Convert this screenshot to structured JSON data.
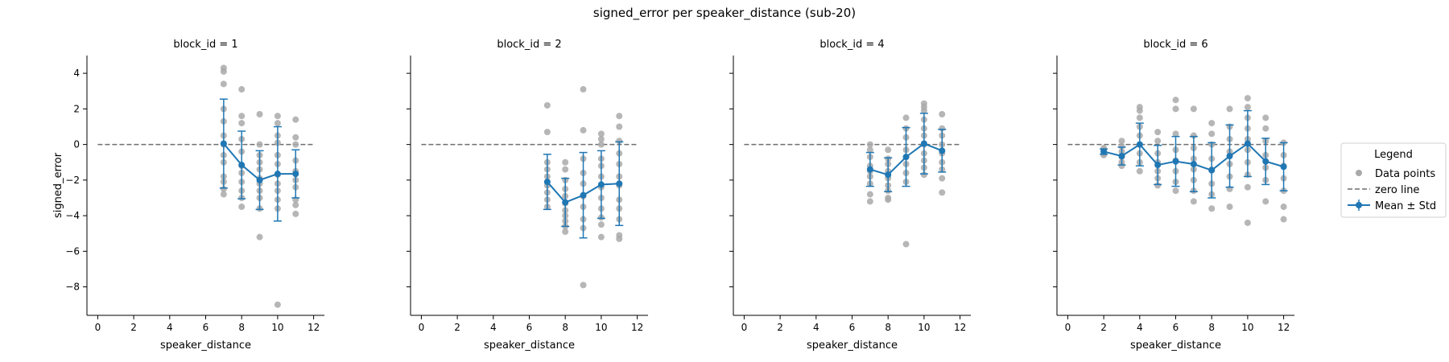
{
  "chart_data": {
    "title": "signed_error per speaker_distance (sub-20)",
    "type": "scatter",
    "xlabel": "speaker_distance",
    "ylabel": "signed_error",
    "xlim": [
      -0.6,
      12.6
    ],
    "ylim": [
      -9.6,
      5.0
    ],
    "xticks": [
      0,
      2,
      4,
      6,
      8,
      10,
      12
    ],
    "yticks": [
      4,
      2,
      0,
      -2,
      -4,
      -6,
      -8
    ],
    "zero_line": 0,
    "colors": {
      "points": "#a9a9a9",
      "mean": "#1f77b4",
      "zero": "#6e6e6e"
    },
    "legend": {
      "title": "Legend",
      "position": "right",
      "entries": [
        "Data points",
        "zero line",
        "Mean ± Std"
      ]
    },
    "panels": [
      {
        "title": "block_id = 1",
        "mean": [
          {
            "x": 7,
            "y": 0.05,
            "std": 2.5
          },
          {
            "x": 8,
            "y": -1.15,
            "std": 1.9
          },
          {
            "x": 9,
            "y": -2.0,
            "std": 1.65
          },
          {
            "x": 10,
            "y": -1.65,
            "std": 2.65
          },
          {
            "x": 11,
            "y": -1.65,
            "std": 1.35
          }
        ],
        "points": [
          {
            "x": 7,
            "y": [
              4.3,
              4.1,
              3.4,
              2.0,
              1.3,
              0.5,
              0.0,
              -0.6,
              -1.0,
              -1.8,
              -2.1,
              -2.5,
              -2.8
            ]
          },
          {
            "x": 8,
            "y": [
              3.1,
              1.6,
              1.2,
              0.3,
              -0.4,
              -1.2,
              -1.6,
              -2.1,
              -2.6,
              -3.0,
              -3.5
            ]
          },
          {
            "x": 9,
            "y": [
              1.7,
              0.0,
              -0.6,
              -1.0,
              -1.4,
              -1.9,
              -2.2,
              -2.6,
              -3.0,
              -3.6,
              -5.2
            ]
          },
          {
            "x": 10,
            "y": [
              1.6,
              1.2,
              0.5,
              0.1,
              -0.6,
              -1.1,
              -1.7,
              -2.2,
              -2.6,
              -3.1,
              -3.6,
              -9.0
            ]
          },
          {
            "x": 11,
            "y": [
              1.4,
              0.4,
              0.0,
              -0.9,
              -1.5,
              -2.0,
              -2.4,
              -3.1,
              -3.4,
              -3.9
            ]
          }
        ]
      },
      {
        "title": "block_id = 2",
        "mean": [
          {
            "x": 7,
            "y": -2.1,
            "std": 1.55
          },
          {
            "x": 8,
            "y": -3.25,
            "std": 1.35
          },
          {
            "x": 9,
            "y": -2.85,
            "std": 2.4
          },
          {
            "x": 10,
            "y": -2.25,
            "std": 1.9
          },
          {
            "x": 11,
            "y": -2.2,
            "std": 2.35
          }
        ],
        "points": [
          {
            "x": 7,
            "y": [
              2.2,
              0.7,
              -1.0,
              -1.4,
              -1.8,
              -2.3,
              -2.7,
              -3.1,
              -3.5
            ]
          },
          {
            "x": 8,
            "y": [
              -1.0,
              -1.4,
              -2.0,
              -2.5,
              -2.9,
              -3.3,
              -3.7,
              -4.0,
              -4.3,
              -4.6,
              -4.9
            ]
          },
          {
            "x": 9,
            "y": [
              3.1,
              0.8,
              -0.8,
              -1.6,
              -2.2,
              -2.9,
              -3.5,
              -4.2,
              -4.7,
              -7.9
            ]
          },
          {
            "x": 10,
            "y": [
              0.6,
              0.3,
              0.0,
              -0.8,
              -1.2,
              -1.8,
              -2.4,
              -3.0,
              -3.6,
              -4.1,
              -4.5,
              -5.2
            ]
          },
          {
            "x": 11,
            "y": [
              1.6,
              1.0,
              0.2,
              -0.5,
              -1.1,
              -1.8,
              -2.3,
              -3.1,
              -3.6,
              -4.2,
              -5.1,
              -5.3
            ]
          }
        ]
      },
      {
        "title": "block_id = 4",
        "mean": [
          {
            "x": 7,
            "y": -1.4,
            "std": 0.95
          },
          {
            "x": 8,
            "y": -1.7,
            "std": 0.95
          },
          {
            "x": 9,
            "y": -0.7,
            "std": 1.65
          },
          {
            "x": 10,
            "y": 0.05,
            "std": 1.7
          },
          {
            "x": 11,
            "y": -0.35,
            "std": 1.2
          }
        ],
        "points": [
          {
            "x": 7,
            "y": [
              0.0,
              -0.3,
              -0.7,
              -1.2,
              -1.5,
              -1.8,
              -2.2,
              -2.8,
              -3.2
            ]
          },
          {
            "x": 8,
            "y": [
              -0.3,
              -0.8,
              -1.1,
              -1.5,
              -1.9,
              -2.3,
              -2.6,
              -3.0,
              -3.1
            ]
          },
          {
            "x": 9,
            "y": [
              1.5,
              0.9,
              0.4,
              -0.3,
              -0.7,
              -1.1,
              -1.6,
              -2.1,
              -5.6
            ]
          },
          {
            "x": 10,
            "y": [
              2.3,
              2.1,
              1.9,
              1.4,
              0.9,
              0.5,
              0.0,
              -0.5,
              -0.9,
              -1.3,
              -1.7
            ]
          },
          {
            "x": 11,
            "y": [
              1.7,
              0.9,
              0.5,
              0.0,
              -0.5,
              -1.0,
              -1.4,
              -1.9,
              -2.7
            ]
          }
        ]
      },
      {
        "title": "block_id = 6",
        "mean": [
          {
            "x": 2,
            "y": -0.4,
            "std": 0.15
          },
          {
            "x": 3,
            "y": -0.65,
            "std": 0.5
          },
          {
            "x": 4,
            "y": 0.0,
            "std": 1.2
          },
          {
            "x": 5,
            "y": -1.15,
            "std": 1.1
          },
          {
            "x": 6,
            "y": -0.95,
            "std": 1.4
          },
          {
            "x": 7,
            "y": -1.1,
            "std": 1.55
          },
          {
            "x": 8,
            "y": -1.45,
            "std": 1.55
          },
          {
            "x": 9,
            "y": -0.65,
            "std": 1.75
          },
          {
            "x": 10,
            "y": 0.05,
            "std": 1.85
          },
          {
            "x": 11,
            "y": -0.95,
            "std": 1.3
          },
          {
            "x": 12,
            "y": -1.25,
            "std": 1.35
          }
        ],
        "points": [
          {
            "x": 2,
            "y": [
              -0.2,
              -0.3,
              -0.4,
              -0.5,
              -0.6
            ]
          },
          {
            "x": 3,
            "y": [
              0.2,
              -0.1,
              -0.4,
              -0.7,
              -1.0,
              -1.2
            ]
          },
          {
            "x": 4,
            "y": [
              2.1,
              1.9,
              1.5,
              1.0,
              0.5,
              0.0,
              -0.5,
              -1.0,
              -1.5
            ]
          },
          {
            "x": 5,
            "y": [
              0.7,
              0.2,
              -0.5,
              -1.0,
              -1.5,
              -1.9,
              -2.3
            ]
          },
          {
            "x": 6,
            "y": [
              2.5,
              2.0,
              0.6,
              -0.3,
              -0.9,
              -1.5,
              -2.1,
              -2.6
            ]
          },
          {
            "x": 7,
            "y": [
              2.0,
              0.5,
              -0.2,
              -0.8,
              -1.4,
              -2.0,
              -2.6,
              -3.2
            ]
          },
          {
            "x": 8,
            "y": [
              1.2,
              0.6,
              0.0,
              -0.8,
              -1.4,
              -2.2,
              -2.8,
              -3.6
            ]
          },
          {
            "x": 9,
            "y": [
              2.0,
              1.0,
              0.3,
              -0.4,
              -1.1,
              -1.8,
              -2.5,
              -3.5
            ]
          },
          {
            "x": 10,
            "y": [
              2.6,
              2.1,
              1.5,
              0.9,
              0.3,
              -0.3,
              -1.0,
              -1.7,
              -2.4,
              -4.4
            ]
          },
          {
            "x": 11,
            "y": [
              1.5,
              0.9,
              0.2,
              -0.6,
              -1.3,
              -2.0,
              -3.2
            ]
          },
          {
            "x": 12,
            "y": [
              0.1,
              -0.6,
              -1.2,
              -1.9,
              -2.6,
              -3.5,
              -4.2
            ]
          }
        ]
      }
    ]
  }
}
